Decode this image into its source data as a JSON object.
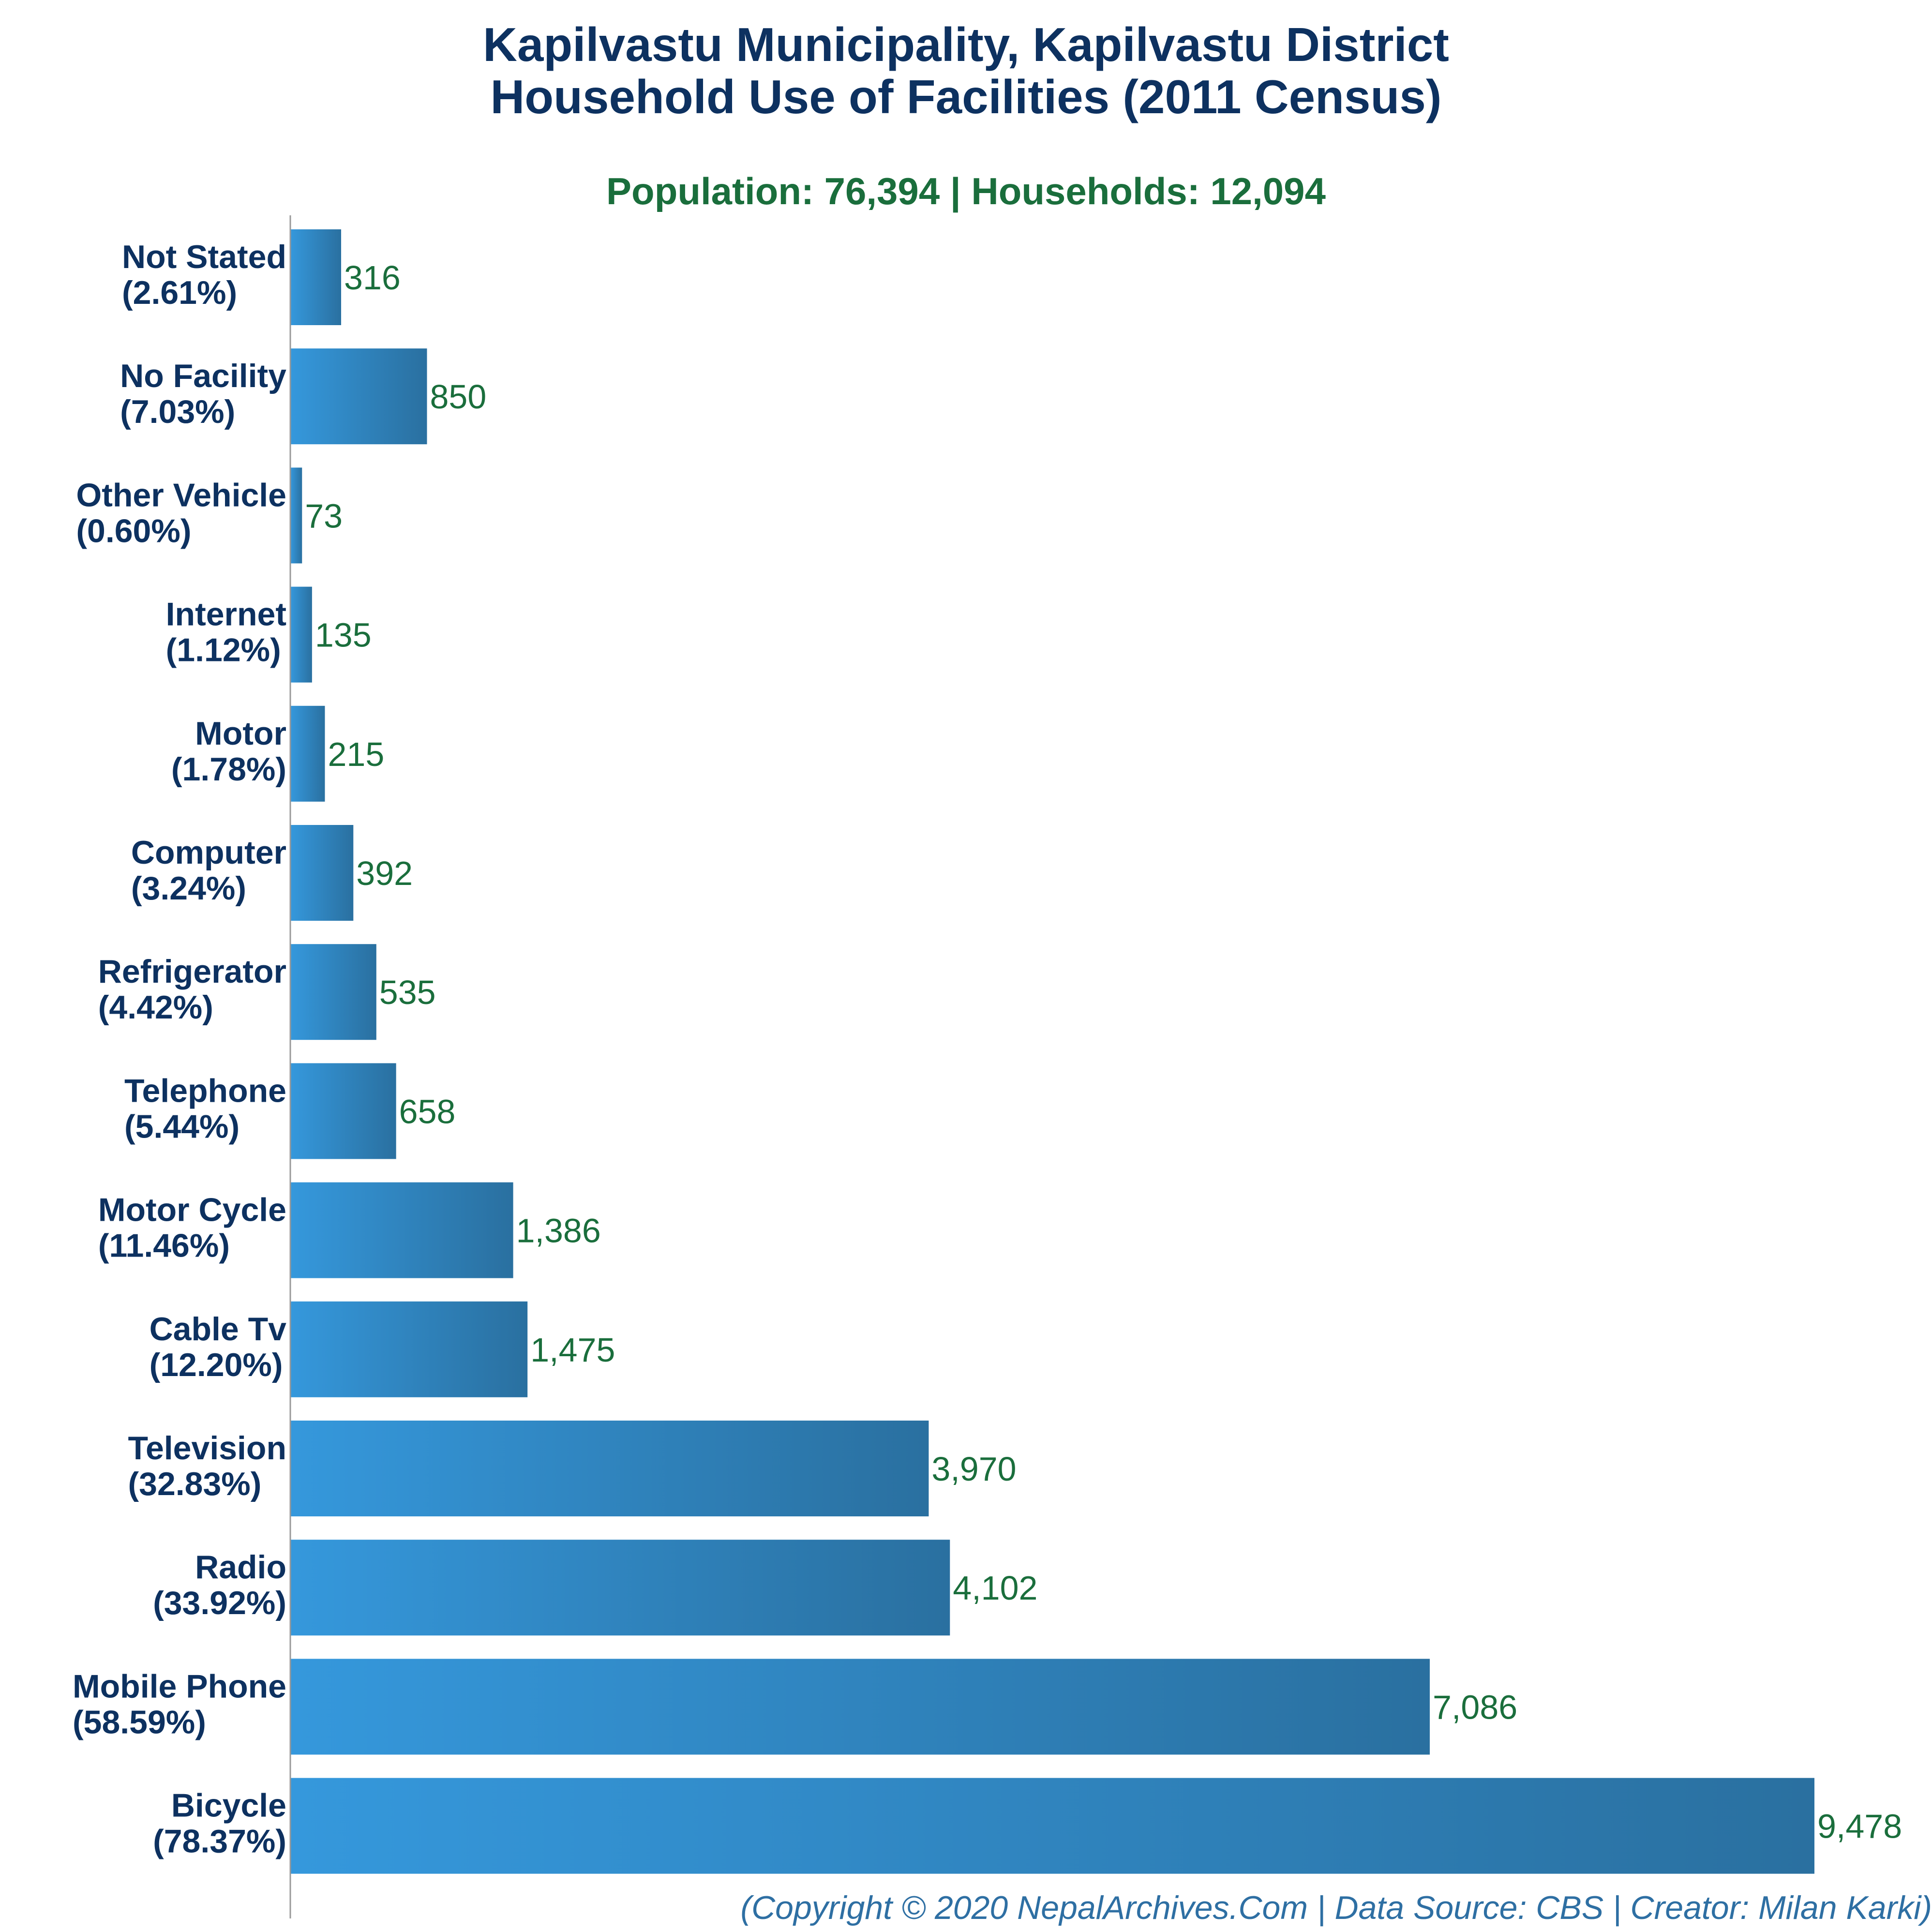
{
  "title_line1": "Kapilvastu Municipality, Kapilvastu District",
  "title_line2": "Household Use of Facilities (2011 Census)",
  "subtitle": "Population: 76,394 | Households: 12,094",
  "footer": "(Copyright © 2020 NepalArchives.Com | Data Source: CBS | Creator: Milan Karki)",
  "colors": {
    "title": "#0d3160",
    "subtitle": "#1a6e3c",
    "category_label": "#0d3160",
    "value_label": "#1a6e3c",
    "bar_light": "#3598dc",
    "bar_dark": "#2a70a0",
    "axis": "#999999",
    "footer": "#2e6fa3"
  },
  "chart_data": {
    "type": "bar",
    "orientation": "horizontal",
    "xlim": [
      0,
      9478
    ],
    "grid": false,
    "categories": [
      {
        "name": "Not Stated",
        "percent": "(2.61%)",
        "value": 316,
        "value_label": "316"
      },
      {
        "name": "No Facility",
        "percent": "(7.03%)",
        "value": 850,
        "value_label": "850"
      },
      {
        "name": "Other Vehicle",
        "percent": "(0.60%)",
        "value": 73,
        "value_label": "73"
      },
      {
        "name": "Internet",
        "percent": "(1.12%)",
        "value": 135,
        "value_label": "135"
      },
      {
        "name": "Motor",
        "percent": "(1.78%)",
        "value": 215,
        "value_label": "215"
      },
      {
        "name": "Computer",
        "percent": "(3.24%)",
        "value": 392,
        "value_label": "392"
      },
      {
        "name": "Refrigerator",
        "percent": "(4.42%)",
        "value": 535,
        "value_label": "535"
      },
      {
        "name": "Telephone",
        "percent": "(5.44%)",
        "value": 658,
        "value_label": "658"
      },
      {
        "name": "Motor Cycle",
        "percent": "(11.46%)",
        "value": 1386,
        "value_label": "1,386"
      },
      {
        "name": "Cable Tv",
        "percent": "(12.20%)",
        "value": 1475,
        "value_label": "1,475"
      },
      {
        "name": "Television",
        "percent": "(32.83%)",
        "value": 3970,
        "value_label": "3,970"
      },
      {
        "name": "Radio",
        "percent": "(33.92%)",
        "value": 4102,
        "value_label": "4,102"
      },
      {
        "name": "Mobile Phone",
        "percent": "(58.59%)",
        "value": 7086,
        "value_label": "7,086"
      },
      {
        "name": "Bicycle",
        "percent": "(78.37%)",
        "value": 9478,
        "value_label": "9,478"
      }
    ]
  }
}
